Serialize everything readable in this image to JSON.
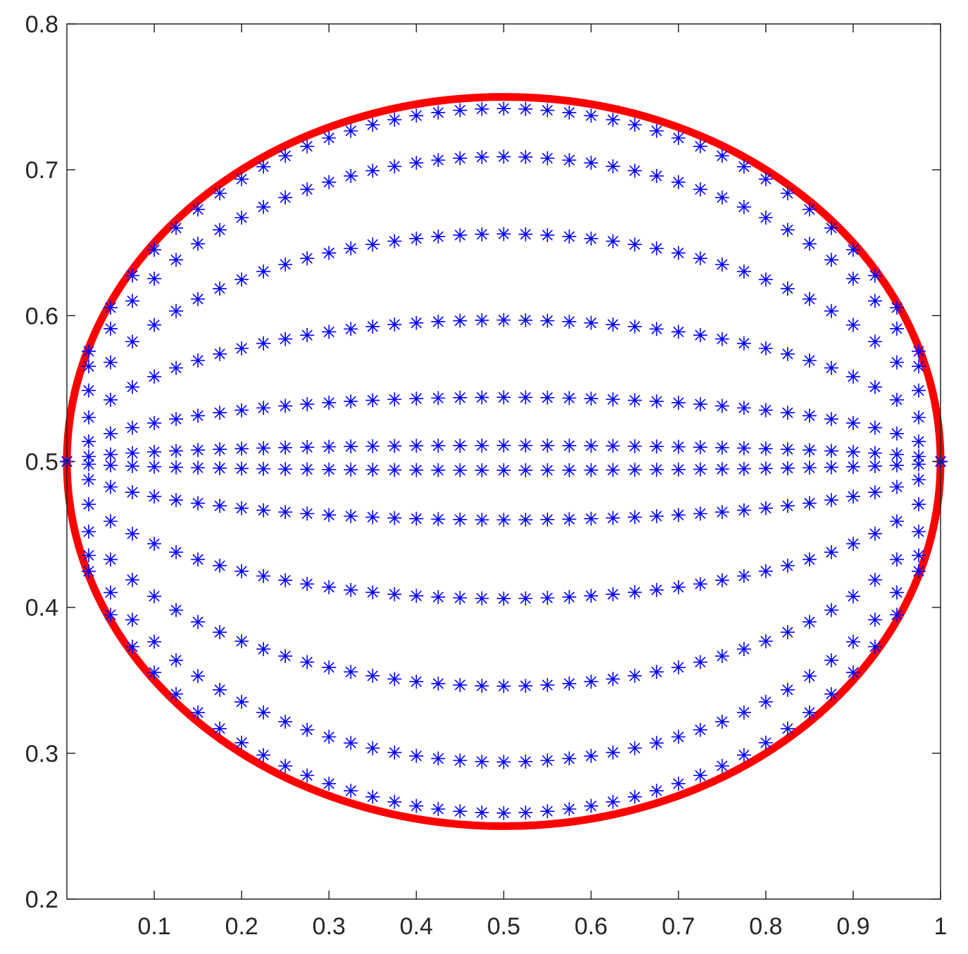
{
  "chart_data": {
    "type": "scatter",
    "title": "",
    "xlabel": "",
    "ylabel": "",
    "xlim": [
      0,
      1
    ],
    "ylim": [
      0.2,
      0.8
    ],
    "x_ticks": [
      {
        "value": 0.1,
        "label": "0.1"
      },
      {
        "value": 0.2,
        "label": "0.2"
      },
      {
        "value": 0.3,
        "label": "0.3"
      },
      {
        "value": 0.4,
        "label": "0.4"
      },
      {
        "value": 0.5,
        "label": "0.5"
      },
      {
        "value": 0.6,
        "label": "0.6"
      },
      {
        "value": 0.7,
        "label": "0.7"
      },
      {
        "value": 0.8,
        "label": "0.8"
      },
      {
        "value": 0.9,
        "label": "0.9"
      },
      {
        "value": 1.0,
        "label": "1"
      }
    ],
    "y_ticks": [
      {
        "value": 0.2,
        "label": "0.2"
      },
      {
        "value": 0.3,
        "label": "0.3"
      },
      {
        "value": 0.4,
        "label": "0.4"
      },
      {
        "value": 0.5,
        "label": "0.5"
      },
      {
        "value": 0.6,
        "label": "0.6"
      },
      {
        "value": 0.7,
        "label": "0.7"
      },
      {
        "value": 0.8,
        "label": "0.8"
      }
    ],
    "grid": false,
    "legend": "none",
    "boundary_curve": {
      "shape": "ellipse",
      "center": [
        0.5,
        0.5
      ],
      "semi_axes": [
        0.5,
        0.25
      ],
      "color": "#ff0000"
    },
    "point_series": {
      "marker": "asterisk",
      "color": "#0000ff",
      "x_min": 0,
      "x_max": 1,
      "points_per_curve": 41,
      "curve_mid_y": [
        0.742,
        0.709,
        0.656,
        0.597,
        0.544,
        0.511,
        0.494,
        0.46,
        0.406,
        0.346,
        0.294,
        0.259
      ]
    }
  }
}
